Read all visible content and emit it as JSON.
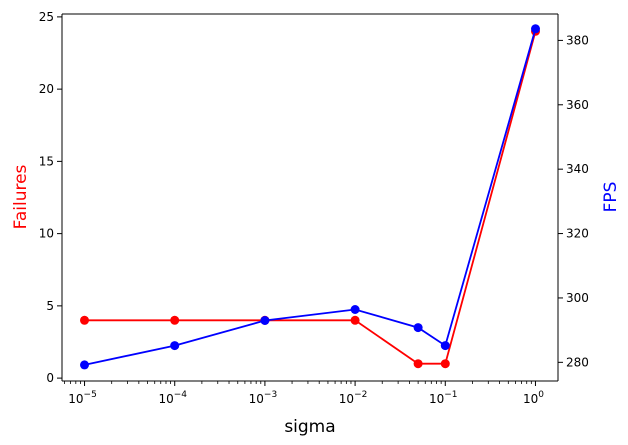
{
  "chart_data": {
    "type": "line",
    "xlabel": "sigma",
    "x_scale": "log",
    "x": [
      1e-05,
      0.0001,
      0.001,
      0.01,
      0.05,
      0.1,
      1
    ],
    "x_ticks": [
      {
        "value": 1e-05,
        "base": "10",
        "exp": "−5"
      },
      {
        "value": 0.0001,
        "base": "10",
        "exp": "−4"
      },
      {
        "value": 0.001,
        "base": "10",
        "exp": "−3"
      },
      {
        "value": 0.01,
        "base": "10",
        "exp": "−2"
      },
      {
        "value": 0.1,
        "base": "10",
        "exp": "−1"
      },
      {
        "value": 1,
        "base": "10",
        "exp": "0"
      }
    ],
    "y_left": {
      "label": "Failures",
      "color": "#ff0000",
      "ylim": [
        -0.2,
        25.2
      ],
      "ticks": [
        0,
        5,
        10,
        15,
        20,
        25
      ]
    },
    "y_right": {
      "label": "FPS",
      "color": "#0000ff",
      "ylim": [
        274.2,
        388.2
      ],
      "ticks": [
        280,
        300,
        320,
        340,
        360,
        380
      ]
    },
    "series": [
      {
        "axis": "left",
        "color": "#ff0000",
        "values": [
          4,
          4,
          4,
          4,
          1,
          1,
          24
        ]
      },
      {
        "axis": "right",
        "color": "#0000ff",
        "values": [
          279.2,
          285.2,
          293.0,
          296.4,
          290.8,
          285.2,
          383.6
        ]
      }
    ],
    "grid": false,
    "legend": "none"
  }
}
